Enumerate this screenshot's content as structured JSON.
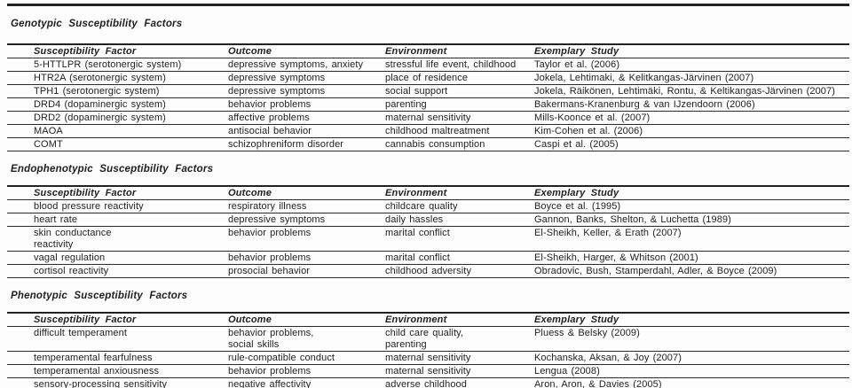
{
  "colors": {
    "background": "#fdfdfd",
    "text": "#1f1f1f",
    "rule": "#222222"
  },
  "sections": [
    {
      "title": "Genotypic Susceptibility Factors",
      "columns": [
        "Susceptibility Factor",
        "Outcome",
        "Environment",
        "Exemplary Study"
      ],
      "rows": [
        {
          "factor": "5-HTTLPR (serotonergic system)",
          "outcome": "depressive symptoms, anxiety",
          "environment": "stressful life event, childhood",
          "study": "Taylor et al. (2006)"
        },
        {
          "factor": "HTR2A (serotonergic system)",
          "outcome": "depressive symptoms",
          "environment": "place of residence",
          "study": "Jokela, Lehtimaki, & Kelitkangas-Järvinen (2007)"
        },
        {
          "factor": "TPH1 (serotonergic system)",
          "outcome": "depressive symptoms",
          "environment": "social support",
          "study": "Jokela, Räikönen, Lehtimäki, Rontu, & Keltikangas-Järvinen (2007)"
        },
        {
          "factor": "DRD4 (dopaminergic system)",
          "outcome": "behavior problems",
          "environment": "parenting",
          "study": "Bakermans-Kranenburg & van IJzendoorn (2006)"
        },
        {
          "factor": "DRD2 (dopaminergic system)",
          "outcome": "affective problems",
          "environment": "maternal sensitivity",
          "study": "Mills-Koonce et al. (2007)"
        },
        {
          "factor": "MAOA",
          "outcome": "antisocial behavior",
          "environment": "childhood maltreatment",
          "study": "Kim-Cohen et al. (2006)"
        },
        {
          "factor": "COMT",
          "outcome": "schizophreniform disorder",
          "environment": "cannabis consumption",
          "study": "Caspi et al. (2005)"
        }
      ]
    },
    {
      "title": "Endophenotypic Susceptibility Factors",
      "columns": [
        "Susceptibility Factor",
        "Outcome",
        "Environment",
        "Exemplary Study"
      ],
      "rows": [
        {
          "factor": "blood pressure reactivity",
          "outcome": "respiratory illness",
          "environment": "childcare quality",
          "study": "Boyce et al. (1995)"
        },
        {
          "factor": "heart rate",
          "outcome": "depressive symptoms",
          "environment": "daily hassles",
          "study": "Gannon, Banks, Shelton, & Luchetta (1989)"
        },
        {
          "factor": "skin conductance\nreactivity",
          "outcome": "behavior problems",
          "environment": "marital conflict",
          "study": "El-Sheikh, Keller, & Erath (2007)"
        },
        {
          "factor": "vagal regulation",
          "outcome": "behavior problems",
          "environment": "marital conflict",
          "study": "El-Sheikh, Harger, & Whitson (2001)"
        },
        {
          "factor": "cortisol reactivity",
          "outcome": "prosocial behavior",
          "environment": "childhood adversity",
          "study": "Obradovic, Bush, Stamperdahl, Adler, & Boyce (2009)"
        }
      ]
    },
    {
      "title": "Phenotypic Susceptibility Factors",
      "columns": [
        "Susceptibility Factor",
        "Outcome",
        "Environment",
        "Exemplary Study"
      ],
      "rows": [
        {
          "factor": "difficult temperament",
          "outcome": "behavior problems,\nsocial skills",
          "environment": "child care quality,\nparenting",
          "study": "Pluess & Belsky (2009)"
        },
        {
          "factor": "temperamental fearfulness",
          "outcome": "rule-compatible conduct",
          "environment": "maternal sensitivity",
          "study": "Kochanska, Aksan, & Joy (2007)"
        },
        {
          "factor": "temperamental anxiousness",
          "outcome": "behavior problems",
          "environment": "maternal sensitivity",
          "study": "Lengua (2008)"
        },
        {
          "factor": "sensory-processing sensitivity",
          "outcome": "negative affectivity",
          "environment": "adverse childhood",
          "study": "Aron, Aron, & Davies (2005)"
        }
      ]
    }
  ]
}
